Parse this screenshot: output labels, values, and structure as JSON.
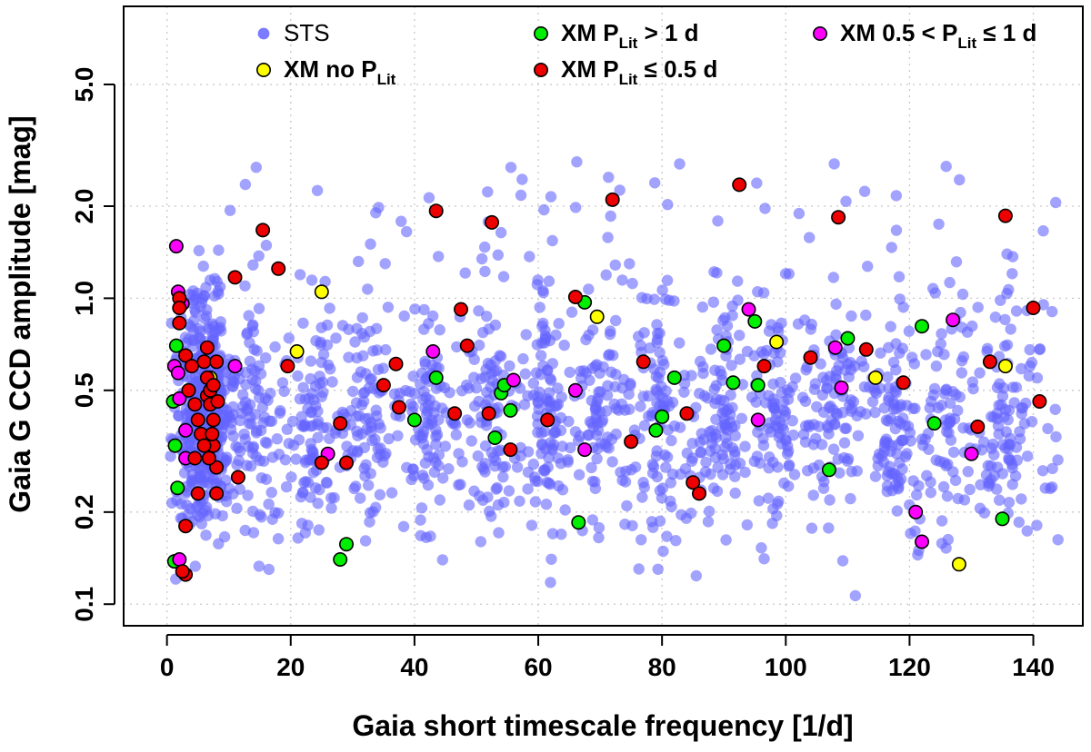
{
  "chart_data": {
    "type": "scatter",
    "xlabel": "Gaia short timescale frequency [1/d]",
    "ylabel": "Gaia G CCD amplitude [mag]",
    "xlim": [
      -7,
      148
    ],
    "ylim": [
      0.085,
      9.0
    ],
    "yscale": "log",
    "xticks": [
      0,
      20,
      40,
      60,
      80,
      100,
      120,
      140
    ],
    "xtick_labels": [
      "0",
      "20",
      "40",
      "60",
      "80",
      "100",
      "120",
      "140"
    ],
    "yticks": [
      0.1,
      0.2,
      0.5,
      1.0,
      2.0,
      5.0
    ],
    "ytick_labels": [
      "0.1",
      "0.2",
      "0.5",
      "1.0",
      "2.0",
      "5.0"
    ],
    "grid": true,
    "legend": {
      "placement": "top",
      "entries": [
        {
          "key": "sts",
          "text": "STS",
          "bold": false
        },
        {
          "key": "xm_gt1",
          "prefix": "XM P",
          "sub": "Lit",
          "suffix": " > 1 d",
          "bold": true
        },
        {
          "key": "xm_mid",
          "prefix": "XM 0.5 < P",
          "sub": "Lit",
          "suffix": " ≤ 1 d",
          "bold": true
        },
        {
          "key": "xm_nop",
          "prefix": "XM no P",
          "sub": "Lit",
          "suffix": "",
          "bold": true
        },
        {
          "key": "xm_le05",
          "prefix": "XM P",
          "sub": "Lit",
          "suffix": " ≤ 0.5 d",
          "bold": true
        }
      ]
    },
    "series": [
      {
        "key": "sts",
        "color": "#6464ff",
        "alpha": 0.6,
        "outline": false,
        "random_background": true,
        "count": 1900,
        "seed": 12345
      },
      {
        "key": "xm_nop",
        "color": "#ffff00",
        "outline": true,
        "points": [
          [
            7,
            0.55
          ],
          [
            21,
            0.67
          ],
          [
            25,
            1.05
          ],
          [
            69.5,
            0.87
          ],
          [
            98.5,
            0.72
          ],
          [
            114.5,
            0.55
          ],
          [
            128,
            0.135
          ],
          [
            135.5,
            0.6
          ]
        ]
      },
      {
        "key": "xm_gt1",
        "color": "#00ee00",
        "outline": true,
        "points": [
          [
            1,
            0.46
          ],
          [
            1.3,
            0.33
          ],
          [
            1.5,
            0.7
          ],
          [
            1.7,
            0.24
          ],
          [
            1.2,
            0.138
          ],
          [
            29,
            0.157
          ],
          [
            28,
            0.14
          ],
          [
            40,
            0.4
          ],
          [
            43.5,
            0.55
          ],
          [
            53,
            0.35
          ],
          [
            54,
            0.49
          ],
          [
            54.5,
            0.52
          ],
          [
            55.5,
            0.43
          ],
          [
            66.5,
            0.185
          ],
          [
            67.5,
            0.97
          ],
          [
            79,
            0.37
          ],
          [
            80,
            0.41
          ],
          [
            82,
            0.55
          ],
          [
            90,
            0.7
          ],
          [
            91.5,
            0.53
          ],
          [
            95,
            0.84
          ],
          [
            95.5,
            0.52
          ],
          [
            107,
            0.275
          ],
          [
            110,
            0.74
          ],
          [
            122,
            0.81
          ],
          [
            124,
            0.39
          ],
          [
            135,
            0.19
          ]
        ]
      },
      {
        "key": "xm_mid",
        "color": "#ff00ff",
        "outline": true,
        "points": [
          [
            1.5,
            1.48
          ],
          [
            1.8,
            1.05
          ],
          [
            2.5,
            0.96
          ],
          [
            1.2,
            0.6
          ],
          [
            1.8,
            0.57
          ],
          [
            2,
            0.47
          ],
          [
            3,
            0.37
          ],
          [
            3,
            0.3
          ],
          [
            2,
            0.14
          ],
          [
            11,
            0.6
          ],
          [
            26,
            0.31
          ],
          [
            43,
            0.67
          ],
          [
            56,
            0.54
          ],
          [
            66,
            0.5
          ],
          [
            67.5,
            0.32
          ],
          [
            94,
            0.92
          ],
          [
            95.5,
            0.4
          ],
          [
            108,
            0.69
          ],
          [
            109,
            0.51
          ],
          [
            121,
            0.2
          ],
          [
            122,
            0.16
          ],
          [
            127,
            0.85
          ],
          [
            130,
            0.31
          ]
        ]
      },
      {
        "key": "xm_le05",
        "color": "#ee0000",
        "outline": true,
        "points": [
          [
            2,
            1.0
          ],
          [
            2,
            0.93
          ],
          [
            2,
            0.83
          ],
          [
            3,
            0.65
          ],
          [
            4,
            0.6
          ],
          [
            3.5,
            0.5
          ],
          [
            4.5,
            0.45
          ],
          [
            5,
            0.4
          ],
          [
            5.5,
            0.36
          ],
          [
            4.5,
            0.3
          ],
          [
            5,
            0.23
          ],
          [
            6,
            0.62
          ],
          [
            6.5,
            0.55
          ],
          [
            6.5,
            0.48
          ],
          [
            7,
            0.45
          ],
          [
            7.5,
            0.4
          ],
          [
            7.5,
            0.33
          ],
          [
            8,
            0.28
          ],
          [
            6.5,
            0.69
          ],
          [
            7,
            0.5
          ],
          [
            7.5,
            0.52
          ],
          [
            8,
            0.62
          ],
          [
            8.2,
            0.46
          ],
          [
            7.3,
            0.36
          ],
          [
            6,
            0.33
          ],
          [
            6.8,
            0.3
          ],
          [
            8,
            0.23
          ],
          [
            3,
            0.18
          ],
          [
            3,
            0.125
          ],
          [
            2.5,
            0.128
          ],
          [
            11,
            1.17
          ],
          [
            11.5,
            0.26
          ],
          [
            15.5,
            1.67
          ],
          [
            18,
            1.25
          ],
          [
            19.5,
            0.6
          ],
          [
            25,
            0.29
          ],
          [
            28,
            0.39
          ],
          [
            29,
            0.29
          ],
          [
            35,
            0.52
          ],
          [
            37,
            0.61
          ],
          [
            37.5,
            0.44
          ],
          [
            43.5,
            1.93
          ],
          [
            46.5,
            0.42
          ],
          [
            47.5,
            0.92
          ],
          [
            48.5,
            0.7
          ],
          [
            52,
            0.42
          ],
          [
            52.5,
            1.77
          ],
          [
            55.5,
            0.32
          ],
          [
            61.5,
            0.4
          ],
          [
            66,
            1.01
          ],
          [
            72,
            2.1
          ],
          [
            75,
            0.34
          ],
          [
            77,
            0.62
          ],
          [
            84,
            0.42
          ],
          [
            85,
            0.25
          ],
          [
            86,
            0.23
          ],
          [
            92.5,
            2.35
          ],
          [
            96.5,
            0.6
          ],
          [
            104,
            0.64
          ],
          [
            108.5,
            1.84
          ],
          [
            113,
            0.68
          ],
          [
            119,
            0.53
          ],
          [
            131,
            0.38
          ],
          [
            133,
            0.62
          ],
          [
            135.5,
            1.86
          ],
          [
            140,
            0.93
          ],
          [
            141,
            0.46
          ]
        ]
      }
    ]
  }
}
